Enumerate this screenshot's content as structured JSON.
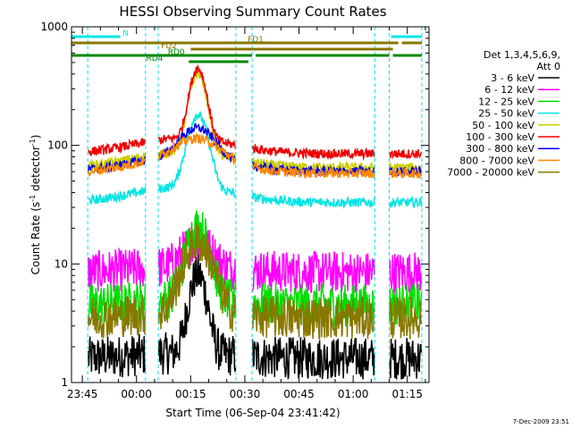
{
  "chart_data": {
    "type": "line",
    "title": "HESSI Observing Summary Count Rates",
    "xlabel": "Start Time (06-Sep-04 23:41:42)",
    "ylabel_prefix": "Count Rate (s",
    "ylabel_sup1": "-1",
    "ylabel_mid": " detector",
    "ylabel_sup2": "-1",
    "ylabel_suffix": ")",
    "y_scale": "log",
    "ylim": [
      1,
      1000
    ],
    "xlim_minutes": [
      -3,
      96
    ],
    "x_tick_labels": [
      "23:45",
      "00:00",
      "00:15",
      "00:30",
      "00:45",
      "01:00",
      "01:15"
    ],
    "x_tick_minutes": [
      0,
      15,
      30,
      45,
      60,
      75,
      90
    ],
    "y_tick_labels": [
      "1",
      "10",
      "100",
      "1000"
    ],
    "y_tick_values": [
      1,
      10,
      100,
      1000
    ],
    "legend_header": "Det 1,3,4,5,6,9,",
    "legend_att": "Att 0",
    "date_stamp": "7-Dec-2009 23:51",
    "series": [
      {
        "name": "3 - 6 keV",
        "color": "#000000",
        "base": 1.6,
        "peak": 8,
        "width": 3.0
      },
      {
        "name": "6 - 12 keV",
        "color": "#ff00ff",
        "base": 8.5,
        "peak": 15,
        "width": 5.0
      },
      {
        "name": "12 - 25 keV",
        "color": "#00dd00",
        "base": 4.5,
        "peak": 20,
        "width": 4.0
      },
      {
        "name": "25 - 50 keV",
        "color": "#00e5e5",
        "base": 33,
        "peak": 170,
        "width": 3.5
      },
      {
        "name": "50 - 100 keV",
        "color": "#cccc00",
        "base": 65,
        "peak": 380,
        "width": 3.0
      },
      {
        "name": "100 - 300 keV",
        "color": "#ee0000",
        "base": 85,
        "peak": 420,
        "width": 2.8
      },
      {
        "name": "300 - 800 keV",
        "color": "#0000ee",
        "base": 60,
        "peak": 120,
        "width": 6.0
      },
      {
        "name": "800 - 7000 keV",
        "color": "#ff8800",
        "base": 58,
        "peak": 95,
        "width": 8.0
      },
      {
        "name": "7000 - 20000 keV",
        "color": "#887700",
        "base": 3.5,
        "peak": 15,
        "width": 5.0
      }
    ],
    "flare_peak_minute": 32,
    "data_gaps_minutes": [
      [
        -3,
        1.5
      ],
      [
        17.5,
        21
      ],
      [
        42.5,
        47
      ],
      [
        81,
        85
      ],
      [
        94,
        96
      ]
    ],
    "attenuator_labels": [
      "N",
      "FD1",
      "FD2",
      "RD0",
      "RD4"
    ],
    "attenuator_bars": [
      {
        "label": "N",
        "color": "#00e5e5",
        "segments": [
          [
            -3,
            10.5
          ],
          [
            85.5,
            94
          ]
        ],
        "level": 1
      },
      {
        "label": "FD1",
        "color": "#887700",
        "segments": [
          [
            -3,
            87.5
          ],
          [
            88.5,
            94
          ]
        ],
        "level": 2
      },
      {
        "label": "FD2",
        "color": "#887700",
        "segments": [
          [
            30,
            86
          ]
        ],
        "level": 3
      },
      {
        "label": "RD0",
        "color": "#008800",
        "segments": [
          [
            -3,
            47
          ],
          [
            48,
            85
          ],
          [
            86,
            94
          ]
        ],
        "level": 4
      },
      {
        "label": "RD4",
        "color": "#008800",
        "segments": [
          [
            29.5,
            46
          ]
        ],
        "level": 5
      }
    ]
  }
}
